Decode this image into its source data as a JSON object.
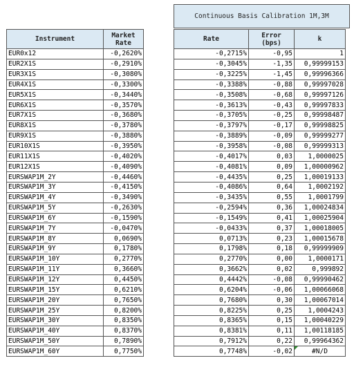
{
  "header": {
    "calib_title": "Continuous Basis Calibration 1M,3M",
    "col_instrument": "Instrument",
    "col_market_rate_l1": "Market",
    "col_market_rate_l2": "Rate",
    "col_rate": "Rate",
    "col_error_l1": "Error",
    "col_error_l2": "(bps)",
    "col_k": "k"
  },
  "rows": [
    {
      "instrument": "EUR0x12",
      "market": "-0,2620%",
      "rate": "-0,2715%",
      "error": "-0,95",
      "k": "1"
    },
    {
      "instrument": "EUR2X1S",
      "market": "-0,2910%",
      "rate": "-0,3045%",
      "error": "-1,35",
      "k": "0,99999153"
    },
    {
      "instrument": "EUR3X1S",
      "market": "-0,3080%",
      "rate": "-0,3225%",
      "error": "-1,45",
      "k": "0,99996366"
    },
    {
      "instrument": "EUR4X1S",
      "market": "-0,3300%",
      "rate": "-0,3388%",
      "error": "-0,88",
      "k": "0,99997028"
    },
    {
      "instrument": "EUR5X1S",
      "market": "-0,3440%",
      "rate": "-0,3508%",
      "error": "-0,68",
      "k": "0,99997126"
    },
    {
      "instrument": "EUR6X1S",
      "market": "-0,3570%",
      "rate": "-0,3613%",
      "error": "-0,43",
      "k": "0,99997833"
    },
    {
      "instrument": "EUR7X1S",
      "market": "-0,3680%",
      "rate": "-0,3705%",
      "error": "-0,25",
      "k": "0,99998487"
    },
    {
      "instrument": "EUR8X1S",
      "market": "-0,3780%",
      "rate": "-0,3797%",
      "error": "-0,17",
      "k": "0,99998825"
    },
    {
      "instrument": "EUR9X1S",
      "market": "-0,3880%",
      "rate": "-0,3889%",
      "error": "-0,09",
      "k": "0,99999277"
    },
    {
      "instrument": "EUR10X1S",
      "market": "-0,3950%",
      "rate": "-0,3958%",
      "error": "-0,08",
      "k": "0,99999313"
    },
    {
      "instrument": "EUR11X1S",
      "market": "-0,4020%",
      "rate": "-0,4017%",
      "error": "0,03",
      "k": "1,0000025"
    },
    {
      "instrument": "EUR12X1S",
      "market": "-0,4090%",
      "rate": "-0,4081%",
      "error": "0,09",
      "k": "1,00000962"
    },
    {
      "instrument": "EURSWAP1M_2Y",
      "market": "-0,4460%",
      "rate": "-0,4435%",
      "error": "0,25",
      "k": "1,00019133"
    },
    {
      "instrument": "EURSWAP1M_3Y",
      "market": "-0,4150%",
      "rate": "-0,4086%",
      "error": "0,64",
      "k": "1,0002192"
    },
    {
      "instrument": "EURSWAP1M_4Y",
      "market": "-0,3490%",
      "rate": "-0,3435%",
      "error": "0,55",
      "k": "1,0001799"
    },
    {
      "instrument": "EURSWAP1M_5Y",
      "market": "-0,2630%",
      "rate": "-0,2594%",
      "error": "0,36",
      "k": "1,00024834"
    },
    {
      "instrument": "EURSWAP1M_6Y",
      "market": "-0,1590%",
      "rate": "-0,1549%",
      "error": "0,41",
      "k": "1,00025904"
    },
    {
      "instrument": "EURSWAP1M_7Y",
      "market": "-0,0470%",
      "rate": "-0,0433%",
      "error": "0,37",
      "k": "1,00018005"
    },
    {
      "instrument": "EURSWAP1M_8Y",
      "market": "0,0690%",
      "rate": "0,0713%",
      "error": "0,23",
      "k": "1,00015678"
    },
    {
      "instrument": "EURSWAP1M_9Y",
      "market": "0,1780%",
      "rate": "0,1798%",
      "error": "0,18",
      "k": "0,99999909"
    },
    {
      "instrument": "EURSWAP1M_10Y",
      "market": "0,2770%",
      "rate": "0,2770%",
      "error": "0,00",
      "k": "1,0000171"
    },
    {
      "instrument": "EURSWAP1M_11Y",
      "market": "0,3660%",
      "rate": "0,3662%",
      "error": "0,02",
      "k": "0,999892"
    },
    {
      "instrument": "EURSWAP1M_12Y",
      "market": "0,4450%",
      "rate": "0,4442%",
      "error": "-0,08",
      "k": "0,99990462"
    },
    {
      "instrument": "EURSWAP1M_15Y",
      "market": "0,6210%",
      "rate": "0,6204%",
      "error": "-0,06",
      "k": "1,00066068"
    },
    {
      "instrument": "EURSWAP1M_20Y",
      "market": "0,7650%",
      "rate": "0,7680%",
      "error": "0,30",
      "k": "1,00067014"
    },
    {
      "instrument": "EURSWAP1M_25Y",
      "market": "0,8200%",
      "rate": "0,8225%",
      "error": "0,25",
      "k": "1,0004243"
    },
    {
      "instrument": "EURSWAP1M_30Y",
      "market": "0,8350%",
      "rate": "0,8365%",
      "error": "0,15",
      "k": "1,00040229"
    },
    {
      "instrument": "EURSWAP1M_40Y",
      "market": "0,8370%",
      "rate": "0,8381%",
      "error": "0,11",
      "k": "1,00118185"
    },
    {
      "instrument": "EURSWAP1M_50Y",
      "market": "0,7890%",
      "rate": "0,7912%",
      "error": "0,22",
      "k": "0,99964362"
    },
    {
      "instrument": "EURSWAP1M_60Y",
      "market": "0,7750%",
      "rate": "0,7748%",
      "error": "-0,02",
      "k": "#N/D"
    }
  ],
  "colors": {
    "header_bg": "#dbe9f3",
    "border": "#555555",
    "error_flag": "#2e8b2e"
  },
  "icons": {
    "error_indicator": "green-triangle-icon"
  }
}
